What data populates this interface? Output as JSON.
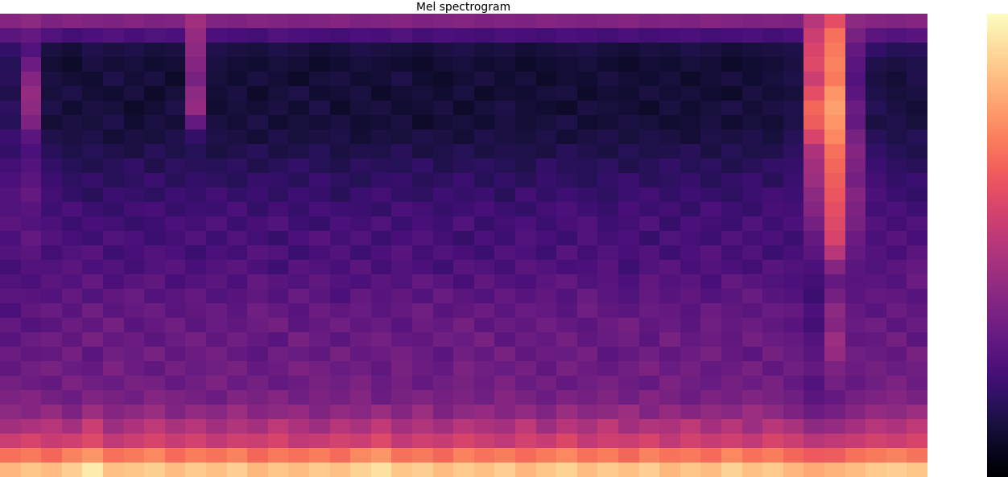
{
  "chart_data": {
    "type": "heatmap",
    "title": "Mel spectrogram",
    "color": "magma",
    "tick_labels": false,
    "colorbar_range": [
      0,
      100
    ],
    "colorbar_ticks": [],
    "cells": [
      [
        38,
        40,
        36,
        38,
        37,
        36,
        38,
        36,
        37,
        45,
        37,
        36,
        38,
        37,
        36,
        37,
        38,
        36,
        37,
        38,
        36,
        37,
        38,
        36,
        37,
        36,
        38,
        37,
        36,
        37,
        38,
        36,
        37,
        36,
        38,
        37,
        36,
        37,
        36,
        50,
        62,
        40,
        38,
        37,
        38
      ],
      [
        28,
        30,
        25,
        22,
        24,
        26,
        23,
        25,
        24,
        42,
        24,
        23,
        22,
        25,
        24,
        23,
        22,
        24,
        23,
        25,
        22,
        24,
        23,
        22,
        24,
        23,
        22,
        24,
        23,
        22,
        24,
        22,
        23,
        24,
        22,
        23,
        24,
        22,
        24,
        55,
        70,
        35,
        28,
        26,
        27
      ],
      [
        18,
        25,
        12,
        10,
        14,
        12,
        13,
        11,
        12,
        40,
        14,
        12,
        11,
        13,
        12,
        10,
        11,
        13,
        12,
        11,
        10,
        12,
        13,
        11,
        12,
        10,
        11,
        12,
        13,
        11,
        10,
        12,
        11,
        13,
        12,
        10,
        11,
        12,
        13,
        58,
        72,
        30,
        18,
        15,
        16
      ],
      [
        15,
        32,
        10,
        8,
        12,
        10,
        11,
        9,
        10,
        38,
        12,
        10,
        9,
        11,
        10,
        8,
        9,
        11,
        10,
        9,
        8,
        10,
        11,
        9,
        10,
        8,
        9,
        10,
        11,
        9,
        8,
        10,
        9,
        11,
        10,
        8,
        9,
        10,
        12,
        60,
        74,
        28,
        14,
        12,
        13
      ],
      [
        16,
        38,
        12,
        10,
        9,
        13,
        10,
        12,
        8,
        35,
        11,
        9,
        12,
        10,
        8,
        11,
        12,
        9,
        10,
        13,
        9,
        8,
        10,
        12,
        9,
        11,
        8,
        10,
        9,
        12,
        10,
        9,
        11,
        8,
        10,
        12,
        9,
        11,
        13,
        55,
        72,
        26,
        12,
        10,
        14
      ],
      [
        14,
        42,
        11,
        13,
        10,
        9,
        12,
        8,
        11,
        40,
        10,
        12,
        8,
        11,
        13,
        9,
        10,
        12,
        8,
        10,
        11,
        9,
        12,
        8,
        10,
        9,
        11,
        12,
        8,
        10,
        9,
        12,
        10,
        11,
        9,
        8,
        12,
        10,
        11,
        62,
        78,
        28,
        13,
        11,
        12
      ],
      [
        17,
        40,
        13,
        9,
        12,
        11,
        8,
        10,
        13,
        42,
        9,
        11,
        10,
        12,
        9,
        13,
        8,
        11,
        12,
        9,
        10,
        12,
        8,
        11,
        13,
        10,
        9,
        8,
        12,
        11,
        10,
        8,
        12,
        9,
        11,
        13,
        10,
        12,
        14,
        68,
        80,
        32,
        15,
        12,
        10
      ],
      [
        15,
        36,
        10,
        12,
        11,
        14,
        9,
        12,
        10,
        30,
        12,
        10,
        13,
        9,
        11,
        10,
        12,
        9,
        10,
        12,
        8,
        10,
        11,
        9,
        12,
        10,
        11,
        13,
        9,
        10,
        12,
        11,
        9,
        10,
        12,
        9,
        11,
        10,
        13,
        66,
        78,
        30,
        12,
        14,
        11
      ],
      [
        20,
        28,
        14,
        12,
        13,
        10,
        12,
        11,
        14,
        18,
        13,
        12,
        10,
        14,
        11,
        12,
        13,
        10,
        12,
        11,
        13,
        12,
        10,
        14,
        12,
        11,
        13,
        10,
        12,
        14,
        11,
        13,
        12,
        10,
        13,
        12,
        14,
        11,
        15,
        58,
        75,
        35,
        16,
        13,
        15
      ],
      [
        18,
        24,
        16,
        13,
        15,
        14,
        12,
        16,
        13,
        15,
        12,
        14,
        16,
        12,
        13,
        15,
        12,
        14,
        13,
        16,
        12,
        13,
        15,
        12,
        14,
        13,
        12,
        16,
        14,
        12,
        15,
        13,
        14,
        16,
        12,
        15,
        13,
        14,
        17,
        48,
        70,
        38,
        18,
        15,
        14
      ],
      [
        22,
        26,
        18,
        15,
        14,
        16,
        18,
        14,
        17,
        16,
        15,
        17,
        14,
        16,
        18,
        15,
        14,
        17,
        16,
        15,
        18,
        14,
        16,
        17,
        15,
        14,
        18,
        16,
        15,
        17,
        14,
        16,
        18,
        15,
        17,
        14,
        16,
        18,
        19,
        45,
        68,
        36,
        20,
        17,
        16
      ],
      [
        24,
        28,
        20,
        17,
        19,
        15,
        17,
        20,
        16,
        18,
        17,
        15,
        19,
        18,
        16,
        20,
        17,
        15,
        18,
        19,
        16,
        17,
        20,
        15,
        18,
        16,
        19,
        17,
        15,
        18,
        20,
        16,
        17,
        19,
        15,
        18,
        20,
        16,
        20,
        44,
        66,
        34,
        22,
        18,
        20
      ],
      [
        26,
        30,
        22,
        18,
        16,
        20,
        19,
        17,
        21,
        19,
        22,
        18,
        20,
        17,
        21,
        19,
        16,
        20,
        22,
        18,
        17,
        21,
        19,
        20,
        16,
        22,
        18,
        21,
        19,
        17,
        20,
        22,
        18,
        21,
        19,
        17,
        20,
        22,
        21,
        40,
        64,
        38,
        24,
        20,
        18
      ],
      [
        25,
        27,
        21,
        24,
        20,
        18,
        22,
        23,
        19,
        21,
        20,
        24,
        18,
        22,
        19,
        23,
        21,
        20,
        18,
        24,
        22,
        19,
        21,
        23,
        20,
        18,
        22,
        24,
        21,
        19,
        23,
        20,
        22,
        18,
        24,
        21,
        19,
        23,
        22,
        38,
        62,
        36,
        22,
        24,
        21
      ],
      [
        28,
        26,
        24,
        20,
        23,
        22,
        19,
        21,
        24,
        22,
        25,
        20,
        23,
        26,
        21,
        19,
        24,
        22,
        25,
        20,
        23,
        21,
        26,
        19,
        22,
        24,
        20,
        23,
        25,
        21,
        22,
        26,
        19,
        24,
        22,
        20,
        25,
        21,
        24,
        34,
        60,
        35,
        26,
        22,
        25
      ],
      [
        24,
        30,
        26,
        23,
        21,
        25,
        24,
        20,
        22,
        26,
        21,
        25,
        22,
        19,
        24,
        27,
        22,
        25,
        20,
        23,
        26,
        22,
        19,
        24,
        21,
        25,
        23,
        20,
        26,
        22,
        24,
        19,
        25,
        23,
        21,
        26,
        22,
        24,
        20,
        30,
        58,
        32,
        24,
        27,
        23
      ],
      [
        26,
        28,
        22,
        25,
        27,
        21,
        23,
        26,
        24,
        20,
        24,
        22,
        27,
        25,
        20,
        23,
        26,
        21,
        24,
        27,
        22,
        25,
        23,
        20,
        26,
        24,
        21,
        27,
        22,
        25,
        23,
        26,
        21,
        24,
        27,
        22,
        25,
        20,
        23,
        28,
        50,
        30,
        26,
        23,
        28
      ],
      [
        22,
        26,
        25,
        28,
        24,
        26,
        22,
        25,
        27,
        23,
        26,
        28,
        24,
        21,
        27,
        25,
        23,
        28,
        22,
        26,
        24,
        21,
        27,
        25,
        22,
        28,
        26,
        23,
        24,
        27,
        21,
        25,
        28,
        23,
        26,
        24,
        22,
        27,
        25,
        24,
        38,
        28,
        25,
        28,
        30
      ],
      [
        25,
        24,
        28,
        26,
        30,
        24,
        27,
        29,
        23,
        26,
        28,
        24,
        30,
        27,
        25,
        29,
        26,
        24,
        28,
        25,
        30,
        27,
        23,
        29,
        26,
        24,
        28,
        30,
        25,
        27,
        24,
        29,
        26,
        28,
        23,
        30,
        27,
        25,
        24,
        22,
        30,
        27,
        28,
        26,
        32
      ],
      [
        28,
        27,
        26,
        30,
        25,
        29,
        31,
        26,
        28,
        30,
        25,
        27,
        29,
        26,
        31,
        28,
        24,
        30,
        27,
        29,
        26,
        31,
        28,
        25,
        30,
        27,
        29,
        26,
        31,
        28,
        25,
        30,
        27,
        29,
        26,
        28,
        31,
        27,
        26,
        20,
        34,
        28,
        30,
        29,
        27
      ],
      [
        24,
        29,
        31,
        27,
        33,
        28,
        30,
        32,
        27,
        29,
        31,
        28,
        33,
        30,
        27,
        32,
        29,
        31,
        28,
        30,
        33,
        27,
        29,
        32,
        28,
        31,
        30,
        27,
        33,
        29,
        28,
        31,
        30,
        27,
        32,
        29,
        28,
        31,
        30,
        24,
        40,
        30,
        27,
        32,
        29
      ],
      [
        30,
        26,
        28,
        32,
        29,
        34,
        27,
        30,
        33,
        28,
        31,
        29,
        32,
        34,
        28,
        30,
        33,
        29,
        31,
        27,
        32,
        30,
        34,
        28,
        31,
        29,
        33,
        30,
        28,
        32,
        34,
        29,
        31,
        28,
        33,
        30,
        32,
        29,
        27,
        22,
        38,
        31,
        33,
        28,
        31
      ],
      [
        27,
        31,
        33,
        29,
        35,
        30,
        32,
        28,
        31,
        34,
        29,
        33,
        30,
        27,
        35,
        31,
        28,
        32,
        34,
        30,
        29,
        33,
        31,
        35,
        28,
        32,
        30,
        34,
        29,
        31,
        33,
        28,
        35,
        30,
        32,
        29,
        34,
        31,
        30,
        26,
        44,
        29,
        30,
        34,
        28
      ],
      [
        32,
        29,
        30,
        34,
        28,
        33,
        31,
        35,
        29,
        32,
        34,
        30,
        28,
        33,
        31,
        29,
        35,
        30,
        32,
        34,
        31,
        28,
        33,
        30,
        35,
        29,
        32,
        31,
        34,
        28,
        30,
        33,
        29,
        32,
        35,
        30,
        28,
        34,
        31,
        28,
        42,
        33,
        31,
        29,
        35
      ],
      [
        29,
        33,
        35,
        31,
        30,
        36,
        32,
        29,
        34,
        31,
        33,
        35,
        30,
        32,
        36,
        34,
        31,
        33,
        29,
        35,
        32,
        30,
        36,
        33,
        31,
        34,
        29,
        35,
        32,
        30,
        33,
        36,
        31,
        34,
        30,
        32,
        35,
        29,
        33,
        30,
        36,
        32,
        34,
        31,
        33
      ],
      [
        34,
        32,
        30,
        36,
        33,
        31,
        35,
        34,
        30,
        33,
        36,
        31,
        34,
        30,
        32,
        35,
        33,
        36,
        31,
        34,
        30,
        33,
        35,
        32,
        36,
        31,
        34,
        30,
        33,
        35,
        32,
        30,
        36,
        33,
        31,
        34,
        32,
        35,
        30,
        26,
        34,
        30,
        33,
        36,
        32
      ],
      [
        36,
        38,
        34,
        32,
        37,
        35,
        33,
        38,
        36,
        34,
        32,
        37,
        35,
        38,
        33,
        36,
        34,
        38,
        32,
        35,
        37,
        34,
        36,
        33,
        38,
        35,
        32,
        36,
        34,
        37,
        33,
        38,
        35,
        32,
        36,
        34,
        37,
        35,
        33,
        28,
        30,
        34,
        36,
        38,
        35
      ],
      [
        40,
        38,
        42,
        36,
        44,
        38,
        40,
        43,
        37,
        41,
        39,
        44,
        38,
        40,
        42,
        37,
        41,
        39,
        43,
        38,
        44,
        36,
        40,
        42,
        38,
        41,
        37,
        43,
        39,
        40,
        44,
        37,
        42,
        38,
        41,
        39,
        44,
        40,
        36,
        32,
        34,
        38,
        42,
        40,
        44
      ],
      [
        45,
        48,
        50,
        46,
        55,
        44,
        48,
        52,
        47,
        50,
        45,
        49,
        46,
        52,
        48,
        44,
        50,
        47,
        53,
        46,
        49,
        45,
        51,
        48,
        46,
        52,
        44,
        50,
        47,
        53,
        45,
        49,
        48,
        52,
        46,
        50,
        44,
        51,
        47,
        40,
        42,
        46,
        50,
        48,
        52
      ],
      [
        55,
        58,
        54,
        56,
        60,
        52,
        55,
        58,
        54,
        57,
        53,
        56,
        55,
        58,
        52,
        54,
        57,
        55,
        60,
        53,
        56,
        54,
        58,
        55,
        52,
        57,
        54,
        59,
        53,
        56,
        55,
        58,
        52,
        57,
        54,
        56,
        53,
        58,
        55,
        50,
        52,
        54,
        57,
        55,
        58
      ],
      [
        70,
        72,
        68,
        74,
        78,
        70,
        72,
        75,
        69,
        73,
        71,
        74,
        68,
        72,
        70,
        73,
        69,
        75,
        78,
        70,
        72,
        68,
        74,
        71,
        73,
        69,
        72,
        75,
        70,
        73,
        68,
        74,
        71,
        72,
        69,
        75,
        70,
        73,
        68,
        65,
        66,
        70,
        72,
        74,
        71
      ],
      [
        85,
        88,
        86,
        90,
        96,
        87,
        88,
        90,
        86,
        89,
        87,
        90,
        85,
        88,
        86,
        89,
        87,
        91,
        94,
        88,
        90,
        86,
        89,
        87,
        90,
        85,
        88,
        91,
        86,
        89,
        87,
        90,
        85,
        88,
        86,
        91,
        87,
        89,
        85,
        82,
        84,
        86,
        89,
        90,
        88
      ]
    ]
  }
}
